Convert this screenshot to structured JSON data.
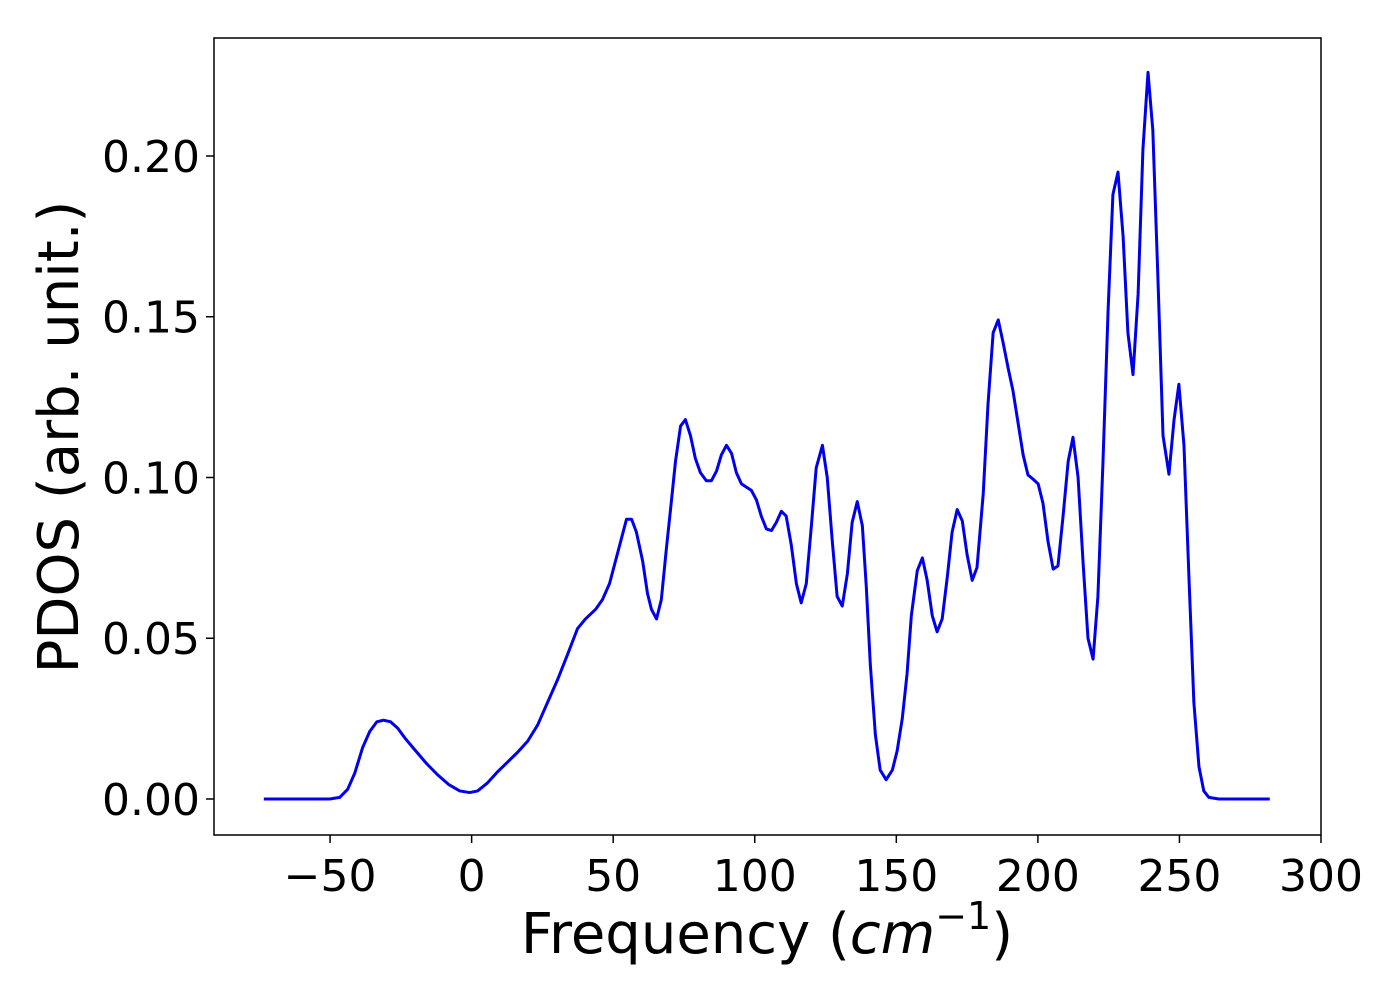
{
  "chart_data": {
    "type": "line",
    "xlabel": [
      "Frequency (",
      "cm",
      "−1",
      ")"
    ],
    "ylabel": "PDOS (arb. unit.)",
    "xlim": [
      -91.0,
      300
    ],
    "ylim": [
      -0.0112,
      0.2367
    ],
    "xticks": [
      {
        "value": -50,
        "label": "−50"
      },
      0,
      50,
      100,
      150,
      200,
      250,
      300
    ],
    "yticks": [
      {
        "value": 0,
        "label": "0.00"
      },
      {
        "value": 0.05,
        "label": "0.05"
      },
      {
        "value": 0.1,
        "label": "0.10"
      },
      {
        "value": 0.15,
        "label": "0.15"
      },
      {
        "value": 0.2,
        "label": "0.20"
      }
    ],
    "series": [
      {
        "color": "#0000ee",
        "x": [
          -73.4,
          -50.1,
          -46.6,
          -43.8,
          -41.3,
          -38.5,
          -36.0,
          -33.5,
          -31.1,
          -28.6,
          -26.1,
          -23.6,
          -19.8,
          -15.9,
          -12.0,
          -8.1,
          -4.2,
          -0.7,
          2.1,
          5.6,
          9.2,
          12.7,
          16.2,
          19.8,
          23.3,
          26.8,
          30.3,
          33.9,
          37.4,
          40.2,
          43.8,
          46.2,
          48.7,
          50.8,
          52.9,
          54.7,
          56.5,
          58.2,
          60.4,
          62.1,
          63.5,
          65.3,
          67.0,
          68.8,
          70.6,
          72.0,
          73.8,
          75.5,
          77.3,
          79.0,
          80.8,
          82.9,
          84.7,
          86.5,
          88.2,
          90.0,
          91.8,
          93.5,
          95.3,
          98.8,
          100.6,
          102.3,
          104.1,
          105.9,
          107.6,
          109.4,
          111.1,
          112.9,
          114.7,
          116.4,
          118.2,
          120.0,
          121.7,
          123.9,
          125.6,
          127.4,
          129.1,
          130.9,
          132.7,
          134.4,
          136.2,
          138.0,
          139.4,
          140.8,
          142.6,
          144.3,
          146.4,
          148.6,
          150.3,
          152.1,
          153.8,
          155.3,
          157.4,
          159.2,
          160.9,
          162.7,
          164.4,
          166.2,
          168.0,
          169.7,
          171.5,
          173.3,
          175.0,
          176.8,
          178.5,
          180.7,
          182.4,
          184.2,
          186.0,
          187.7,
          189.5,
          191.2,
          193.0,
          194.8,
          196.5,
          198.3,
          200.1,
          201.8,
          203.6,
          205.4,
          207.1,
          208.9,
          210.7,
          212.4,
          214.2,
          216.0,
          217.7,
          219.5,
          221.2,
          223.0,
          224.8,
          226.5,
          228.3,
          230.1,
          231.8,
          233.6,
          235.4,
          237.1,
          238.9,
          240.6,
          242.4,
          244.2,
          246.3,
          248.1,
          249.8,
          251.6,
          253.4,
          255.1,
          256.9,
          258.6,
          260.4,
          263.9,
          281.9
        ],
        "values": [
          0,
          0,
          0.0005,
          0.003,
          0.008,
          0.016,
          0.021,
          0.024,
          0.0245,
          0.024,
          0.022,
          0.019,
          0.015,
          0.011,
          0.0075,
          0.0045,
          0.0025,
          0.002,
          0.0025,
          0.005,
          0.0085,
          0.0115,
          0.0145,
          0.018,
          0.023,
          0.03,
          0.037,
          0.045,
          0.053,
          0.056,
          0.059,
          0.062,
          0.067,
          0.074,
          0.081,
          0.087,
          0.087,
          0.083,
          0.074,
          0.064,
          0.059,
          0.056,
          0.062,
          0.078,
          0.093,
          0.105,
          0.116,
          0.118,
          0.113,
          0.106,
          0.1015,
          0.099,
          0.099,
          0.102,
          0.107,
          0.11,
          0.1075,
          0.1015,
          0.098,
          0.096,
          0.093,
          0.088,
          0.084,
          0.0835,
          0.086,
          0.0895,
          0.088,
          0.079,
          0.067,
          0.061,
          0.067,
          0.085,
          0.103,
          0.11,
          0.1,
          0.08,
          0.063,
          0.06,
          0.07,
          0.086,
          0.0925,
          0.085,
          0.066,
          0.042,
          0.02,
          0.009,
          0.006,
          0.009,
          0.015,
          0.025,
          0.039,
          0.057,
          0.071,
          0.075,
          0.068,
          0.057,
          0.052,
          0.056,
          0.069,
          0.083,
          0.09,
          0.0865,
          0.076,
          0.068,
          0.072,
          0.095,
          0.123,
          0.145,
          0.149,
          0.142,
          0.134,
          0.127,
          0.117,
          0.107,
          0.1008,
          0.0995,
          0.098,
          0.092,
          0.08,
          0.0715,
          0.0725,
          0.088,
          0.105,
          0.1125,
          0.1,
          0.073,
          0.05,
          0.0435,
          0.063,
          0.105,
          0.152,
          0.188,
          0.195,
          0.175,
          0.145,
          0.132,
          0.157,
          0.202,
          0.226,
          0.208,
          0.162,
          0.113,
          0.101,
          0.118,
          0.129,
          0.11,
          0.068,
          0.03,
          0.01,
          0.0025,
          0.0005,
          0,
          0
        ]
      }
    ]
  }
}
